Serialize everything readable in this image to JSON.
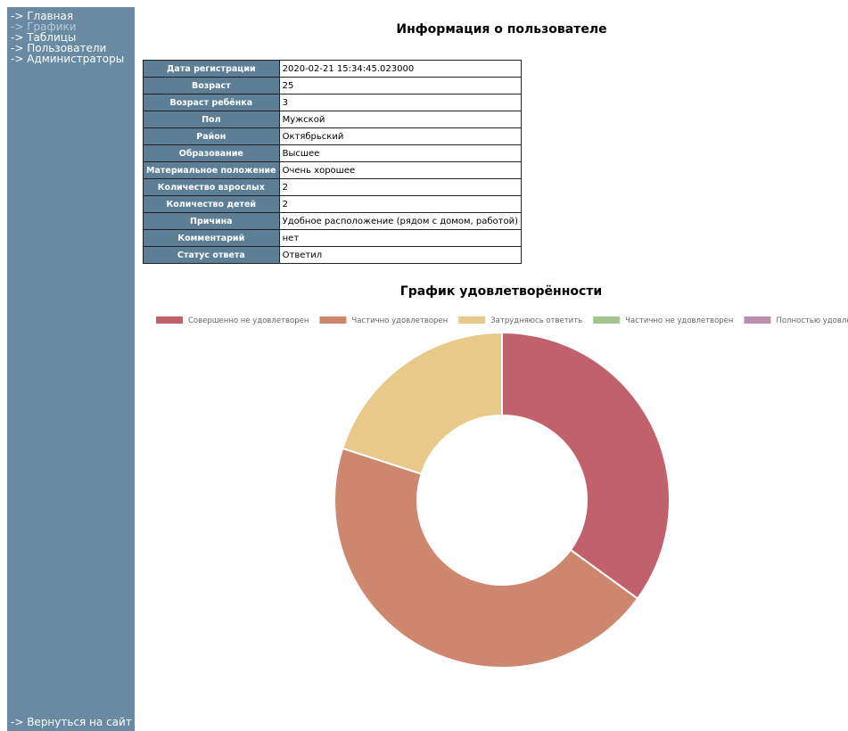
{
  "sidebar": {
    "links": [
      "-> Главная",
      "-> Графики",
      "-> Таблицы",
      "-> Пользователи",
      "-> Администраторы"
    ],
    "active": 1,
    "back": "-> Вернуться на сайт"
  },
  "header": {
    "title": "Информация о пользователе"
  },
  "table": {
    "rows": [
      [
        "Дата регистрации",
        "2020-02-21 15:34:45.023000"
      ],
      [
        "Возраст",
        "25"
      ],
      [
        "Возраст ребёнка",
        "3"
      ],
      [
        "Пол",
        "Мужской"
      ],
      [
        "Район",
        "Октябрьский"
      ],
      [
        "Образование",
        "Высшее"
      ],
      [
        "Материальное положение",
        "Очень хорошее"
      ],
      [
        "Количество взрослых",
        "2"
      ],
      [
        "Количество детей",
        "2"
      ],
      [
        "Причина",
        "Удобное расположение (рядом с домом, работой)"
      ],
      [
        "Комментарий",
        "нет"
      ],
      [
        "Статус ответа",
        "Ответил"
      ]
    ]
  },
  "chart_data": {
    "type": "doughnut",
    "title": "График удовлетворённости",
    "categories": [
      "Совершенно не удовлетворен",
      "Частично удовлетворен",
      "Затрудняюсь ответить",
      "Частично не удовлетворен",
      "Полностью удовлетворен"
    ],
    "values": [
      35,
      45,
      20,
      0,
      0
    ],
    "colors": [
      "#c0616b",
      "#cd876f",
      "#e8c98a",
      "#a3c490",
      "#b98fb0"
    ],
    "legend": "top"
  }
}
